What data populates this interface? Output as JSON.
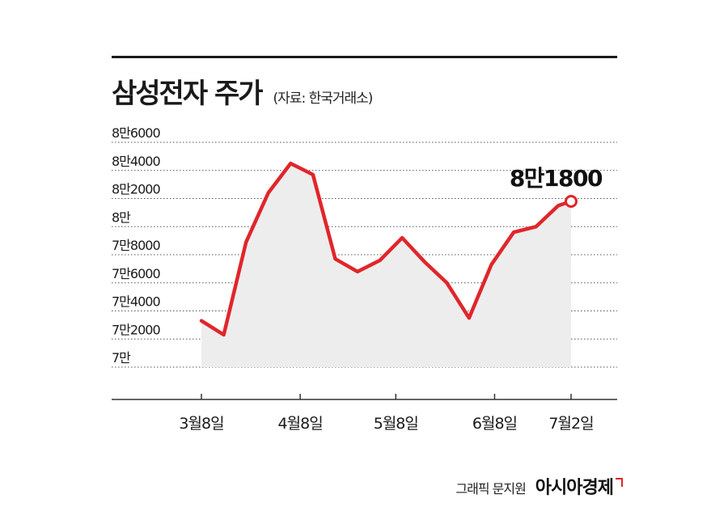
{
  "header": {
    "title": "삼성전자 주가",
    "source": "(자료: 한국거래소)"
  },
  "footer": {
    "credit": "그래픽 문지원",
    "brand": "아시아경제"
  },
  "colors": {
    "line": "#e0262b",
    "area": "#ededed",
    "text": "#1a1a1a"
  },
  "chart_data": {
    "type": "area",
    "title": "삼성전자 주가",
    "xlabel": "",
    "ylabel": "",
    "ylim": [
      70000,
      86000
    ],
    "yticks": [
      {
        "value": 86000,
        "label": "8만6000"
      },
      {
        "value": 84000,
        "label": "8만4000"
      },
      {
        "value": 82000,
        "label": "8만2000"
      },
      {
        "value": 80000,
        "label": "8만"
      },
      {
        "value": 78000,
        "label": "7만8000"
      },
      {
        "value": 76000,
        "label": "7만6000"
      },
      {
        "value": 74000,
        "label": "7만4000"
      },
      {
        "value": 72000,
        "label": "7만2000"
      },
      {
        "value": 70000,
        "label": "7만"
      }
    ],
    "xticks": [
      {
        "date": "2024-03-08",
        "label": "3월8일"
      },
      {
        "date": "2024-04-08",
        "label": "4월8일"
      },
      {
        "date": "2024-05-08",
        "label": "5월8일"
      },
      {
        "date": "2024-06-08",
        "label": "6월8일"
      },
      {
        "date": "2024-07-02",
        "label": "7월2일"
      }
    ],
    "grid": true,
    "series": [
      {
        "points": [
          {
            "date": "2024-03-08",
            "value": 73300
          },
          {
            "date": "2024-03-15",
            "value": 72300
          },
          {
            "date": "2024-03-22",
            "value": 78900
          },
          {
            "date": "2024-03-29",
            "value": 82400
          },
          {
            "date": "2024-04-05",
            "value": 84500
          },
          {
            "date": "2024-04-12",
            "value": 83700
          },
          {
            "date": "2024-04-19",
            "value": 77700
          },
          {
            "date": "2024-04-26",
            "value": 76800
          },
          {
            "date": "2024-05-03",
            "value": 77600
          },
          {
            "date": "2024-05-10",
            "value": 79200
          },
          {
            "date": "2024-05-17",
            "value": 77500
          },
          {
            "date": "2024-05-24",
            "value": 76000
          },
          {
            "date": "2024-05-31",
            "value": 73500
          },
          {
            "date": "2024-06-07",
            "value": 77300
          },
          {
            "date": "2024-06-14",
            "value": 79600
          },
          {
            "date": "2024-06-21",
            "value": 80000
          },
          {
            "date": "2024-06-28",
            "value": 81500
          },
          {
            "date": "2024-07-02",
            "value": 81800
          }
        ]
      }
    ],
    "annotation": {
      "date": "2024-07-02",
      "value": 81800,
      "label": "8만1800"
    }
  }
}
